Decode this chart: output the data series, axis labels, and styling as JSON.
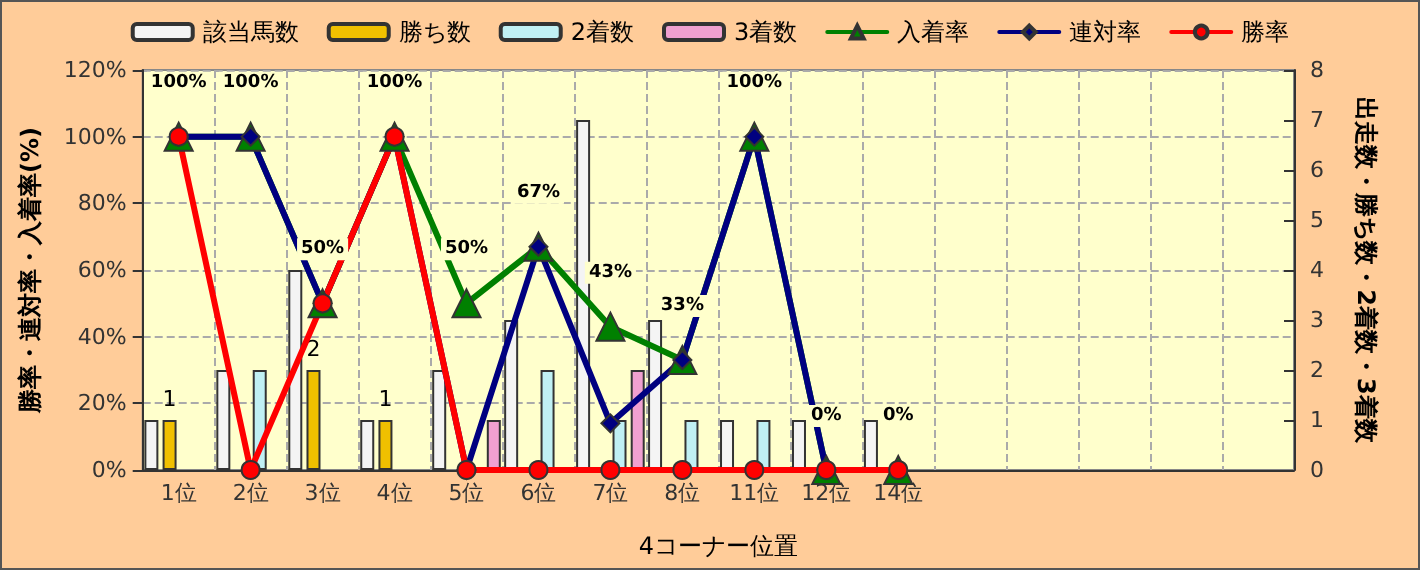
{
  "chart_data": {
    "type": "bar",
    "xlabel": "4コーナー位置",
    "ylabel": "勝率・連対率・入着率(%)",
    "y2label": "出走数・勝ち数・2着数・3着数",
    "categories": [
      "1位",
      "2位",
      "3位",
      "4位",
      "5位",
      "6位",
      "7位",
      "8位",
      "11位",
      "12位",
      "14位",
      null,
      null,
      null,
      null,
      null
    ],
    "series": [
      {
        "name": "該当馬数",
        "axis": "y2",
        "color": "#f4f4f4",
        "values": [
          1,
          2,
          4,
          1,
          2,
          3,
          7,
          3,
          1,
          1,
          1,
          null,
          null,
          null,
          null,
          null
        ]
      },
      {
        "name": "勝ち数",
        "axis": "y2",
        "color": "#f0c000",
        "values": [
          1,
          0,
          2,
          1,
          0,
          0,
          0,
          0,
          0,
          0,
          0,
          null,
          null,
          null,
          null,
          null
        ],
        "value_labels": [
          "1",
          null,
          "2",
          "1",
          null,
          null,
          null,
          null,
          null,
          null,
          null,
          null,
          null,
          null,
          null,
          null
        ]
      },
      {
        "name": "2着数",
        "axis": "y2",
        "color": "#c0f0f4",
        "values": [
          0,
          2,
          0,
          0,
          0,
          2,
          1,
          1,
          1,
          0,
          0,
          null,
          null,
          null,
          null,
          null
        ]
      },
      {
        "name": "3着数",
        "axis": "y2",
        "color": "#f0a0d0",
        "values": [
          0,
          0,
          0,
          0,
          1,
          0,
          2,
          0,
          0,
          0,
          0,
          null,
          null,
          null,
          null,
          null
        ]
      },
      {
        "name": "入着率",
        "type": "line",
        "marker": "triangle",
        "color": "#008000",
        "values": [
          100,
          100,
          50,
          100,
          50,
          67,
          43,
          33,
          100,
          0,
          0,
          null,
          null,
          null,
          null,
          null
        ],
        "value_labels": [
          "100%",
          "100%",
          "50%",
          "100%",
          "50%",
          "67%",
          "43%",
          "33%",
          "100%",
          "0%",
          "0%",
          null,
          null,
          null,
          null,
          null
        ]
      },
      {
        "name": "連対率",
        "type": "line",
        "marker": "diamond",
        "color": "#000080",
        "values": [
          100,
          100,
          50,
          100,
          0,
          67,
          14,
          33,
          100,
          0,
          null,
          null,
          null,
          null,
          null,
          null
        ]
      },
      {
        "name": "勝率",
        "type": "line",
        "marker": "circle",
        "color": "#ff0000",
        "values": [
          100,
          0,
          50,
          100,
          0,
          0,
          0,
          0,
          0,
          0,
          0,
          null,
          null,
          null,
          null,
          null
        ]
      }
    ],
    "ylim": [
      0,
      120
    ],
    "yticks": [
      {
        "value": 0,
        "label": "0%"
      },
      {
        "value": 20,
        "label": "20%"
      },
      {
        "value": 40,
        "label": "40%"
      },
      {
        "value": 60,
        "label": "60%"
      },
      {
        "value": 80,
        "label": "80%"
      },
      {
        "value": 100,
        "label": "100%"
      },
      {
        "value": 120,
        "label": "120%"
      }
    ],
    "y2lim": [
      0,
      8
    ],
    "y2ticks": [
      0,
      1,
      2,
      3,
      4,
      5,
      6,
      7,
      8
    ],
    "grid": true,
    "legend": "top"
  }
}
